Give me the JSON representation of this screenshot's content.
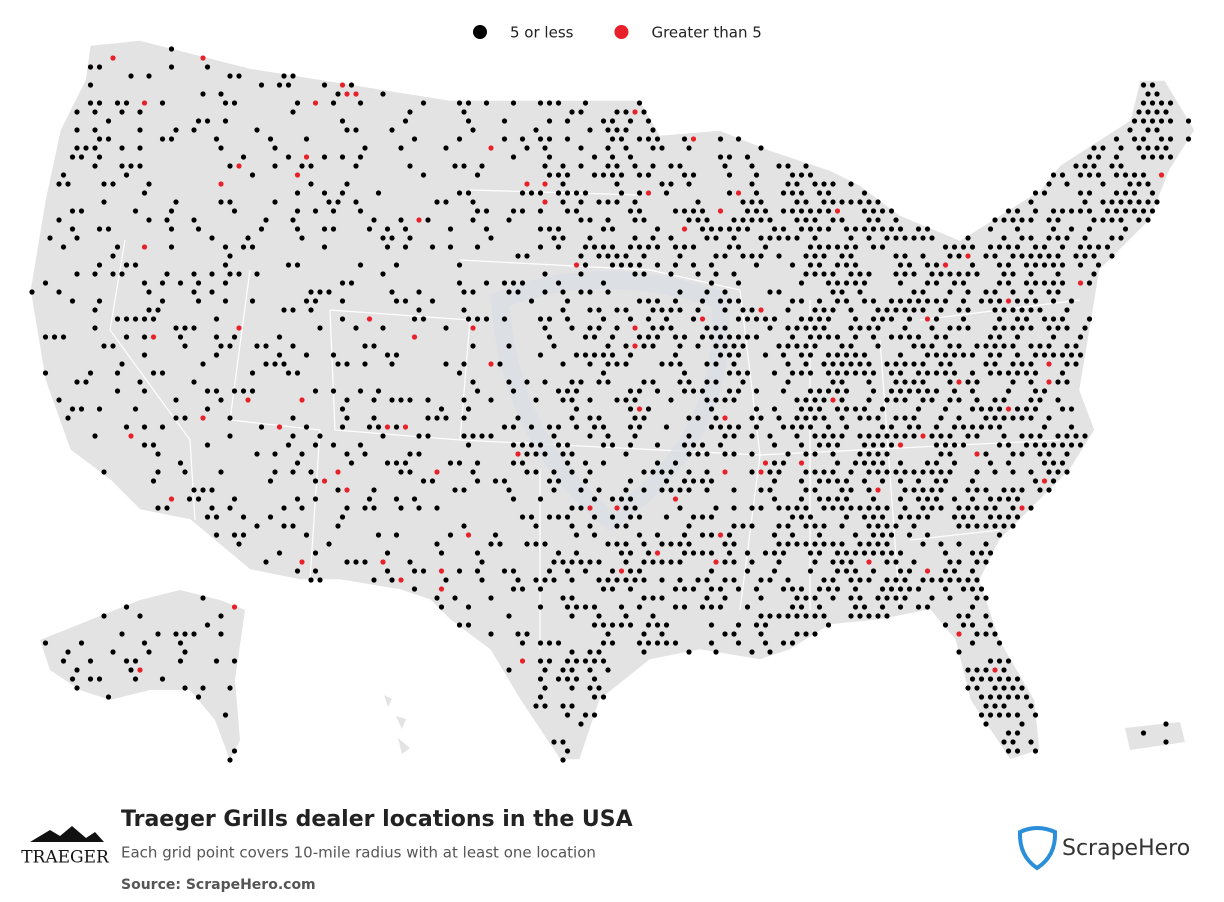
{
  "legend": {
    "items": [
      {
        "label": "5 or less",
        "color": "#000000"
      },
      {
        "label": "Greater than 5",
        "color": "#e8202a"
      }
    ]
  },
  "footer": {
    "title": "Traeger Grills dealer locations in the USA",
    "subtitle": "Each grid point covers 10-mile radius with at least one location",
    "source": "Source: ScrapeHero.com",
    "brand_left": "TRAEGER",
    "brand_right": "ScrapeHero"
  }
}
